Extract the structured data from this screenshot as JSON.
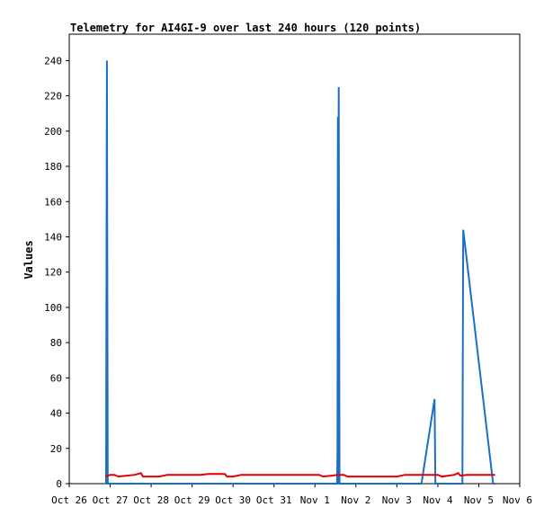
{
  "chart_data": {
    "type": "line",
    "title": "Telemetry for AI4GI-9 over last 240 hours (120 points)",
    "xlabel": "",
    "ylabel": "Values",
    "ylim": [
      0,
      255
    ],
    "y_ticks": [
      0,
      20,
      40,
      60,
      80,
      100,
      120,
      140,
      160,
      180,
      200,
      220,
      240
    ],
    "x_ticks": [
      "Oct 26",
      "Oct 27",
      "Oct 28",
      "Oct 29",
      "Oct 30",
      "Oct 31",
      "Nov 1",
      "Nov 2",
      "Nov 3",
      "Nov 4",
      "Nov 5",
      "Nov 6"
    ],
    "x_range_days": [
      0,
      11
    ],
    "x_unit": "days since Oct 26 00:00",
    "grid": false,
    "legend": "none",
    "series": [
      {
        "name": "",
        "color": "#1a6fc4",
        "points": [
          [
            0.9,
            0
          ],
          [
            0.92,
            240
          ],
          [
            0.94,
            0
          ],
          [
            1.5,
            0
          ],
          [
            3.0,
            0
          ],
          [
            6.0,
            0
          ],
          [
            6.54,
            0
          ],
          [
            6.55,
            17
          ],
          [
            6.56,
            208
          ],
          [
            6.57,
            0
          ],
          [
            6.58,
            225
          ],
          [
            6.6,
            0
          ],
          [
            7.0,
            0
          ],
          [
            8.6,
            0
          ],
          [
            8.92,
            48
          ],
          [
            8.94,
            0
          ],
          [
            9.6,
            0
          ],
          [
            9.62,
            144
          ],
          [
            10.35,
            0
          ],
          [
            10.4,
            0
          ]
        ]
      },
      {
        "name": "",
        "color": "#e00000",
        "points": [
          [
            0.88,
            4
          ],
          [
            1.0,
            5
          ],
          [
            1.1,
            5
          ],
          [
            1.2,
            4
          ],
          [
            1.6,
            5
          ],
          [
            1.75,
            6
          ],
          [
            1.8,
            4
          ],
          [
            2.2,
            4
          ],
          [
            2.4,
            5
          ],
          [
            3.2,
            5
          ],
          [
            3.4,
            5.5
          ],
          [
            3.8,
            5.5
          ],
          [
            3.85,
            4
          ],
          [
            4.0,
            4
          ],
          [
            4.2,
            5
          ],
          [
            5.0,
            5
          ],
          [
            6.0,
            5
          ],
          [
            6.1,
            5
          ],
          [
            6.2,
            4
          ],
          [
            6.4,
            4.5
          ],
          [
            6.55,
            5
          ],
          [
            6.7,
            5
          ],
          [
            6.8,
            4
          ],
          [
            7.5,
            4
          ],
          [
            8.0,
            4
          ],
          [
            8.2,
            5
          ],
          [
            8.92,
            5
          ],
          [
            9.0,
            5
          ],
          [
            9.1,
            4
          ],
          [
            9.4,
            5
          ],
          [
            9.5,
            6
          ],
          [
            9.55,
            4.5
          ],
          [
            9.7,
            5
          ],
          [
            10.4,
            5
          ]
        ]
      }
    ]
  }
}
